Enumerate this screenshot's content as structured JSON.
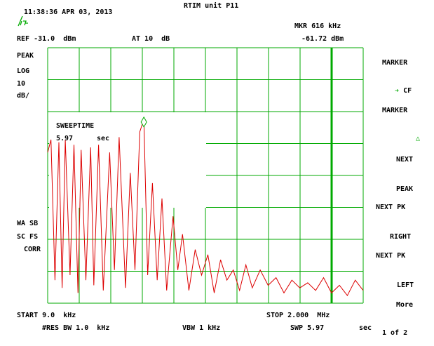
{
  "header": {
    "timestamp": "11:38:36 APR 03, 2013",
    "title": "RTIM unit P11",
    "marker_readout": "MKR 616 kHz",
    "marker_level": "-61.72 dBm",
    "ref_level": "REF -31.0  dBm",
    "attenuation": "AT 10  dB"
  },
  "left_panel": {
    "detector": "PEAK",
    "scale_type": "LOG",
    "scale_value": "10",
    "scale_unit": "dB/",
    "wa_sb": "WA SB",
    "sc_fs": "SC FS",
    "corr": "CORR"
  },
  "overlay": {
    "sweeptime_label": "SWEEPTIME",
    "sweeptime_value": "5.97",
    "sweeptime_unit": "sec"
  },
  "softkeys": {
    "marker_cf_l1": "MARKER",
    "marker_cf_l2": "CF",
    "marker_delta_l1": "MARKER",
    "next_peak_l1": "NEXT",
    "next_peak_l2": "PEAK",
    "next_pk_right_l1": "NEXT PK",
    "next_pk_right_l2": "RIGHT",
    "next_pk_left_l1": "NEXT PK",
    "next_pk_left_l2": "LEFT",
    "more_l1": "More",
    "more_l2": "1 of 2"
  },
  "footer": {
    "start": "START 9.0  kHz",
    "stop": "STOP 2.000  MHz",
    "res_bw": "#RES BW 1.0  kHz",
    "vbw": "VBW 1 kHz",
    "swp": "SWP 5.97",
    "swp_unit": "sec"
  },
  "colors": {
    "grid": "#00aa00",
    "trace": "#dd0000",
    "text": "#000000"
  },
  "chart_data": {
    "type": "line",
    "x_unit": "kHz",
    "y_unit": "dBm",
    "xlim": [
      9.0,
      2000
    ],
    "ylim": [
      -131,
      -31
    ],
    "marker": {
      "x": 616,
      "y": -61.72
    },
    "series": [
      {
        "x": [
          9,
          30,
          55,
          80,
          100,
          120,
          150,
          175,
          200,
          220,
          250,
          280,
          300,
          330,
          360,
          400,
          430,
          460,
          500,
          530,
          560,
          590,
          616,
          640,
          670,
          700,
          730,
          760,
          800,
          830,
          860,
          900,
          940,
          980,
          1020,
          1060,
          1100,
          1140,
          1180,
          1220,
          1260,
          1300,
          1350,
          1400,
          1450,
          1500,
          1550,
          1600,
          1650,
          1700,
          1750,
          1800,
          1850,
          1900,
          1950,
          2000
        ],
        "y": [
          -72,
          -67,
          -122,
          -68,
          -125,
          -67,
          -120,
          -69,
          -127,
          -71,
          -122,
          -70,
          -124,
          -69,
          -126,
          -72,
          -118,
          -66,
          -125,
          -80,
          -118,
          -64,
          -59,
          -120,
          -84,
          -122,
          -90,
          -126,
          -97,
          -118,
          -104,
          -126,
          -110,
          -120,
          -112,
          -127,
          -114,
          -122,
          -118,
          -126,
          -116,
          -125,
          -118,
          -124,
          -121,
          -127,
          -122,
          -125,
          -123,
          -126,
          -121,
          -127,
          -124,
          -128,
          -122,
          -126
        ]
      }
    ]
  }
}
